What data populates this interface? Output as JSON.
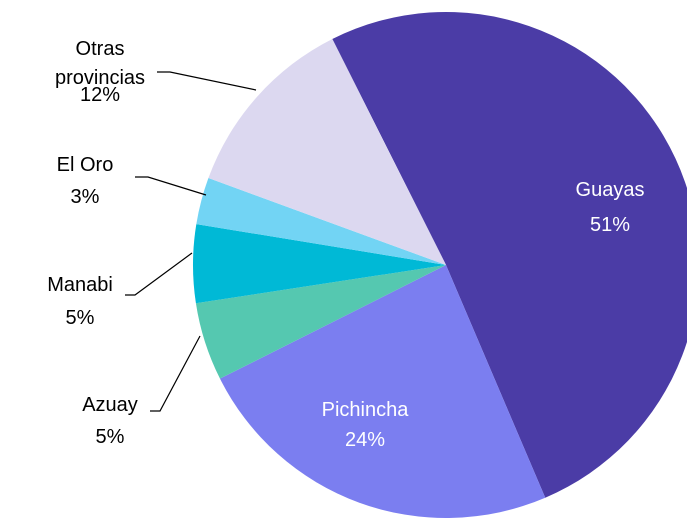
{
  "chart_data": {
    "type": "pie",
    "categories": [
      "Guayas",
      "Pichincha",
      "Azuay",
      "Manabi",
      "El Oro",
      "Otras provincias"
    ],
    "values": [
      51,
      24,
      5,
      5,
      3,
      12
    ],
    "value_labels": [
      "51%",
      "24%",
      "5%",
      "5%",
      "3%",
      "12%"
    ],
    "colors": [
      "#4b3ca6",
      "#7b7ef0",
      "#55c8b0",
      "#00b9d6",
      "#72d4f4",
      "#dcd8f0"
    ]
  }
}
